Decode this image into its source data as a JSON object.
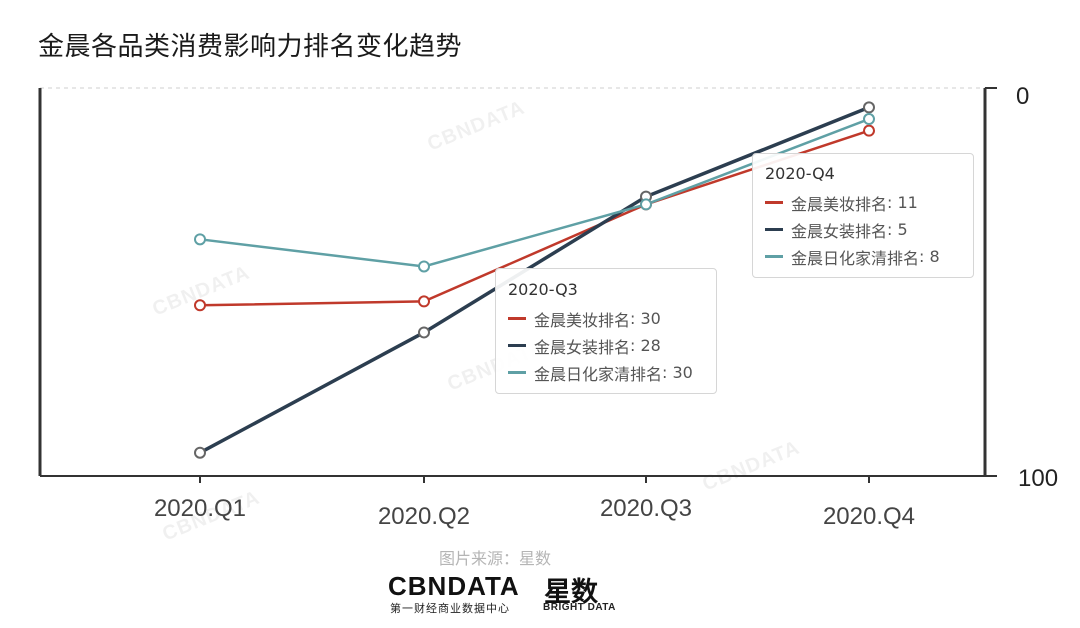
{
  "title": "金晨各品类消费影响力排名变化趋势",
  "chart_data": {
    "type": "line",
    "title": "金晨各品类消费影响力排名变化趋势",
    "categories": [
      "2020.Q1",
      "2020.Q2",
      "2020.Q3",
      "2020.Q4"
    ],
    "ylim": [
      0,
      100
    ],
    "y_inverted": true,
    "y_ticks": [
      "0",
      "100"
    ],
    "series": [
      {
        "name": "金晨美妆排名",
        "values": [
          56,
          55,
          30,
          11
        ],
        "color": "#c0392b"
      },
      {
        "name": "金晨女装排名",
        "values": [
          94,
          63,
          28,
          5
        ],
        "color": "#2c3e50"
      },
      {
        "name": "金晨日化家清排名",
        "values": [
          39,
          46,
          30,
          8
        ],
        "color": "#5fa0a5"
      }
    ]
  },
  "tooltips": [
    {
      "title": "2020-Q4",
      "rows": [
        {
          "label": "金晨美妆排名",
          "value": "11",
          "color": "#c0392b"
        },
        {
          "label": "金晨女装排名",
          "value": "5",
          "color": "#2c3e50"
        },
        {
          "label": "金晨日化家清排名",
          "value": "8",
          "color": "#5fa0a5"
        }
      ]
    },
    {
      "title": "2020-Q3",
      "rows": [
        {
          "label": "金晨美妆排名",
          "value": "30",
          "color": "#c0392b"
        },
        {
          "label": "金晨女装排名",
          "value": "28",
          "color": "#2c3e50"
        },
        {
          "label": "金晨日化家清排名",
          "value": "30",
          "color": "#5fa0a5"
        }
      ]
    }
  ],
  "source": "图片来源：星数",
  "logos": {
    "cbndata": "CBNDATA",
    "cbndata_sub": "第一财经商业数据中心",
    "xingshu": "星数",
    "xingshu_sub": "BRIGHT DATA"
  },
  "watermark": "CBNDATA"
}
